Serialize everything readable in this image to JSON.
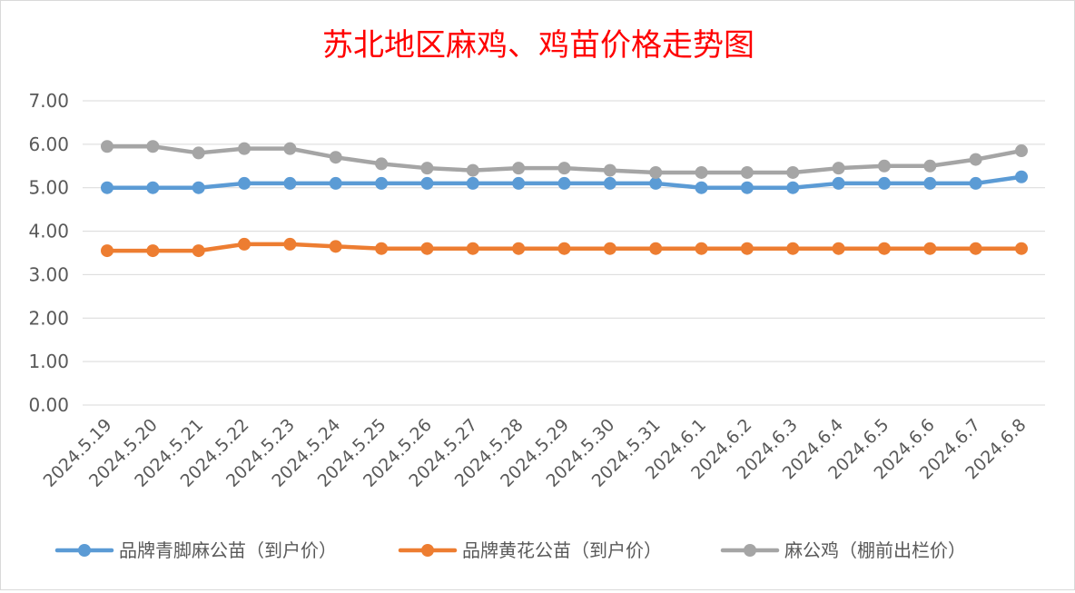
{
  "chart_data": {
    "type": "line",
    "title": "苏北地区麻鸡、鸡苗价格走势图",
    "xlabel": "",
    "ylabel": "",
    "ylim": [
      0,
      7
    ],
    "yticks": [
      "0.00",
      "1.00",
      "2.00",
      "3.00",
      "4.00",
      "5.00",
      "6.00",
      "7.00"
    ],
    "grid": true,
    "legend_position": "bottom",
    "categories": [
      "2024.5.19",
      "2024.5.20",
      "2024.5.21",
      "2024.5.22",
      "2024.5.23",
      "2024.5.24",
      "2024.5.25",
      "2024.5.26",
      "2024.5.27",
      "2024.5.28",
      "2024.5.29",
      "2024.5.30",
      "2024.5.31",
      "2024.6.1",
      "2024.6.2",
      "2024.6.3",
      "2024.6.4",
      "2024.6.5",
      "2024.6.6",
      "2024.6.7",
      "2024.6.8"
    ],
    "series": [
      {
        "name": "品牌青脚麻公苗（到户价）",
        "color": "#5b9bd5",
        "values": [
          5.0,
          5.0,
          5.0,
          5.1,
          5.1,
          5.1,
          5.1,
          5.1,
          5.1,
          5.1,
          5.1,
          5.1,
          5.1,
          5.0,
          5.0,
          5.0,
          5.1,
          5.1,
          5.1,
          5.1,
          5.25
        ]
      },
      {
        "name": "品牌黄花公苗（到户价）",
        "color": "#ed7d31",
        "values": [
          3.55,
          3.55,
          3.55,
          3.7,
          3.7,
          3.65,
          3.6,
          3.6,
          3.6,
          3.6,
          3.6,
          3.6,
          3.6,
          3.6,
          3.6,
          3.6,
          3.6,
          3.6,
          3.6,
          3.6,
          3.6
        ]
      },
      {
        "name": "麻公鸡（棚前出栏价）",
        "color": "#a5a5a5",
        "values": [
          5.95,
          5.95,
          5.8,
          5.9,
          5.9,
          5.7,
          5.55,
          5.45,
          5.4,
          5.45,
          5.45,
          5.4,
          5.35,
          5.35,
          5.35,
          5.35,
          5.45,
          5.5,
          5.5,
          5.65,
          5.85
        ]
      }
    ],
    "title_color": "#ff0000"
  }
}
